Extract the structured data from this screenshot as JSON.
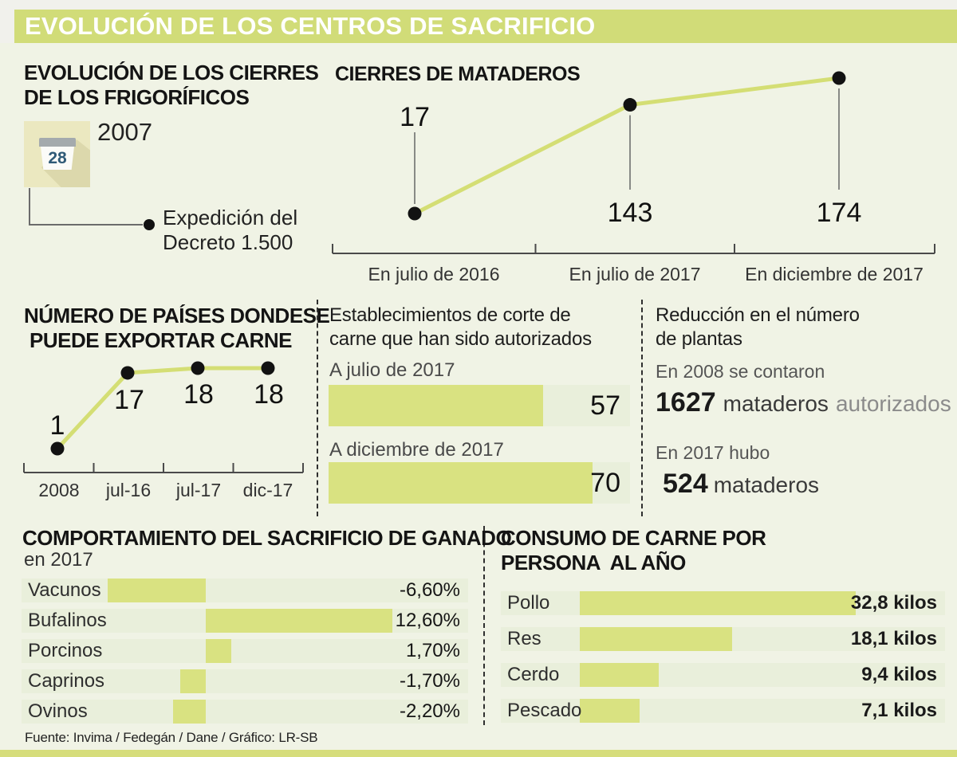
{
  "header": {
    "title": "EVOLUCIÓN DE LOS CENTROS DE SACRIFICIO"
  },
  "colors": {
    "accent_green": "#d1dc78",
    "bar_green": "#d9e281",
    "track_green": "#e9efdb",
    "background": "#f0f3e5",
    "calendar_yellow": "#ebe8c0"
  },
  "frigorificos": {
    "title_line1": "EVOLUCIÓN DE LOS CIERRES",
    "title_line2": "DE LOS FRIGORÍFICOS",
    "year": "2007",
    "calendar_day": "28",
    "note_line1": "Expedición del",
    "note_line2": "Decreto 1.500"
  },
  "cierres": {
    "title": "CIERRES DE MATADEROS"
  },
  "paises": {
    "title_line1": "NÚMERO DE PAÍSES DONDESE",
    "title_line2": "PUEDE EXPORTAR CARNE"
  },
  "establecimientos": {
    "title_line1": "Establecimientos de corte de",
    "title_line2": "carne que han sido autorizados",
    "bars": [
      {
        "label": "A julio de 2017",
        "value": 57
      },
      {
        "label": "A diciembre de 2017",
        "value": 70
      }
    ]
  },
  "reduccion": {
    "title_line1": "Reducción en el número",
    "title_line2": "de plantas",
    "intro_2008": "En 2008 se contaron",
    "value_2008": "1627",
    "unit_2008": "mataderos",
    "suffix_2008": "autorizados",
    "intro_2017": "En 2017 hubo",
    "value_2017": "524",
    "unit_2017": "mataderos"
  },
  "sacrificio": {
    "title": "COMPORTAMIENTO DEL SACRIFICIO DE GANADO",
    "subtitle": "en 2017",
    "rows": [
      {
        "label": "Vacunos",
        "value": -6.6,
        "display": "-6,60%"
      },
      {
        "label": "Bufalinos",
        "value": 12.6,
        "display": "12,60%"
      },
      {
        "label": "Porcinos",
        "value": 1.7,
        "display": "1,70%"
      },
      {
        "label": "Caprinos",
        "value": -1.7,
        "display": "-1,70%"
      },
      {
        "label": "Ovinos",
        "value": -2.2,
        "display": "-2,20%"
      }
    ]
  },
  "consumo": {
    "title_line1": "CONSUMO DE CARNE POR",
    "title_line2": "PERSONA  AL AÑO",
    "rows": [
      {
        "label": "Pollo",
        "value": 32.8,
        "display": "32,8 kilos"
      },
      {
        "label": "Res",
        "value": 18.1,
        "display": "18,1 kilos"
      },
      {
        "label": "Cerdo",
        "value": 9.4,
        "display": "9,4 kilos"
      },
      {
        "label": "Pescado",
        "value": 7.1,
        "display": "7,1 kilos"
      }
    ]
  },
  "footer": {
    "source": "Fuente: Invima / Fedegán / Dane / Gráfico: LR-SB"
  },
  "chart_data": [
    {
      "type": "line",
      "title": "CIERRES DE MATADEROS",
      "categories": [
        "En julio de 2016",
        "En julio de 2017",
        "En diciembre de 2017"
      ],
      "values": [
        17,
        143,
        174
      ],
      "ylim": [
        0,
        200
      ],
      "grid": false,
      "line_color": "#d4de74",
      "point_color": "#121212"
    },
    {
      "type": "line",
      "title": "NÚMERO DE PAÍSES DONDESE PUEDE EXPORTAR CARNE",
      "categories": [
        "2008",
        "jul-16",
        "jul-17",
        "dic-17"
      ],
      "values": [
        1,
        17,
        18,
        18
      ],
      "ylim": [
        0,
        20
      ],
      "grid": false,
      "line_color": "#d4de74",
      "point_color": "#121212"
    },
    {
      "type": "bar",
      "orientation": "horizontal",
      "title": "Establecimientos de corte de carne que han sido autorizados",
      "categories": [
        "A julio de 2017",
        "A diciembre de 2017"
      ],
      "values": [
        57,
        70
      ],
      "xlim": [
        0,
        80
      ],
      "bar_color": "#d9e281"
    },
    {
      "type": "bar",
      "orientation": "horizontal",
      "title": "COMPORTAMIENTO DEL SACRIFICIO DE GANADO en 2017",
      "categories": [
        "Vacunos",
        "Bufalinos",
        "Porcinos",
        "Caprinos",
        "Ovinos"
      ],
      "values": [
        -6.6,
        12.6,
        1.7,
        -1.7,
        -2.2
      ],
      "unit": "%",
      "xlim": [
        -12.5,
        17.5
      ],
      "bar_color": "#d9e281"
    },
    {
      "type": "bar",
      "orientation": "horizontal",
      "title": "CONSUMO DE CARNE POR PERSONA AL AÑO",
      "categories": [
        "Pollo",
        "Res",
        "Cerdo",
        "Pescado"
      ],
      "values": [
        32.8,
        18.1,
        9.4,
        7.1
      ],
      "unit": "kilos",
      "xlim": [
        0,
        43.4
      ],
      "bar_color": "#d9e281"
    }
  ]
}
